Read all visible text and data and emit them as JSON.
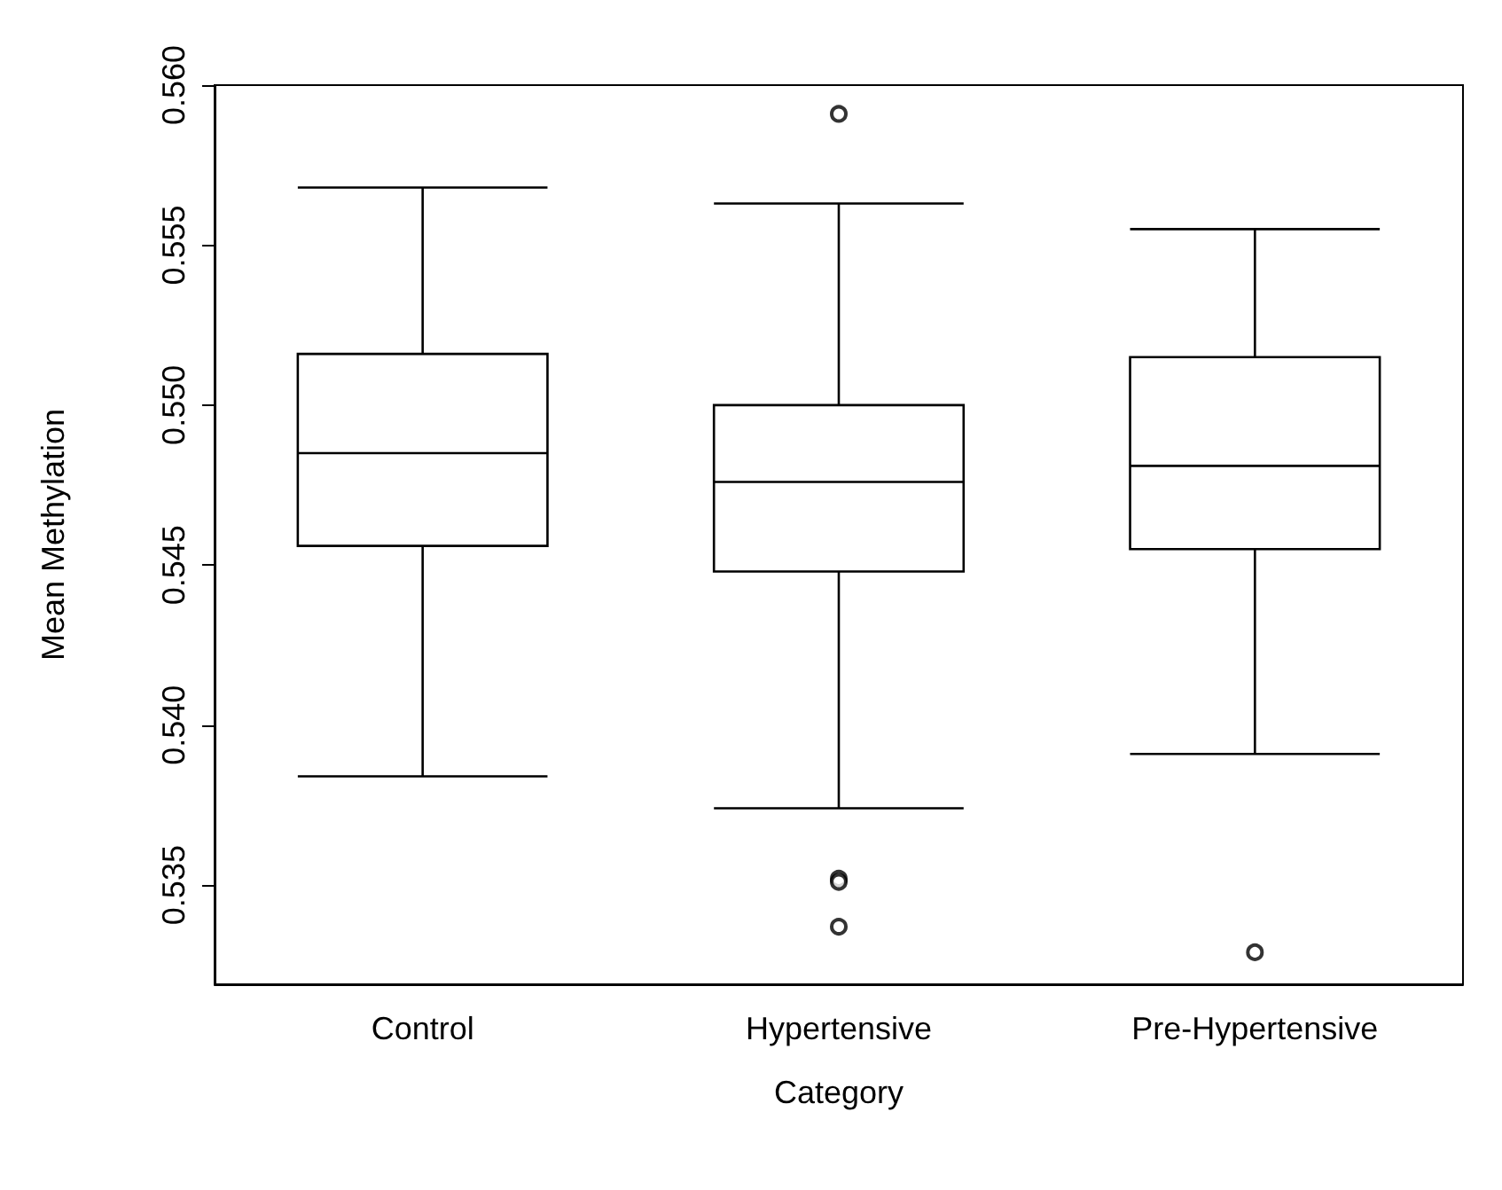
{
  "chart_data": {
    "type": "box",
    "xlabel": "Category",
    "ylabel": "Mean Methylation",
    "categories": [
      "Control",
      "Hypertensive",
      "Pre-Hypertensive"
    ],
    "boxes": [
      {
        "low": 0.5384,
        "q1": 0.5456,
        "median": 0.5485,
        "q3": 0.5516,
        "high": 0.5568
      },
      {
        "low": 0.5374,
        "q1": 0.5448,
        "median": 0.5476,
        "q3": 0.55,
        "high": 0.5563,
        "outliers": [
          0.5591,
          0.5352,
          0.5351,
          0.5337
        ]
      },
      {
        "low": 0.5391,
        "q1": 0.5455,
        "median": 0.5481,
        "q3": 0.5515,
        "high": 0.5555,
        "outliers": [
          0.5329
        ]
      }
    ],
    "color": "#000000",
    "ylim": [
      0.5319,
      0.56
    ],
    "yticks": [
      {
        "value": 0.535,
        "label": "0.535"
      },
      {
        "value": 0.54,
        "label": "0.540"
      },
      {
        "value": 0.545,
        "label": "0.545"
      },
      {
        "value": 0.55,
        "label": "0.550"
      },
      {
        "value": 0.555,
        "label": "0.555"
      },
      {
        "value": 0.56,
        "label": "0.560"
      }
    ],
    "grid": false,
    "marker": "circle"
  }
}
